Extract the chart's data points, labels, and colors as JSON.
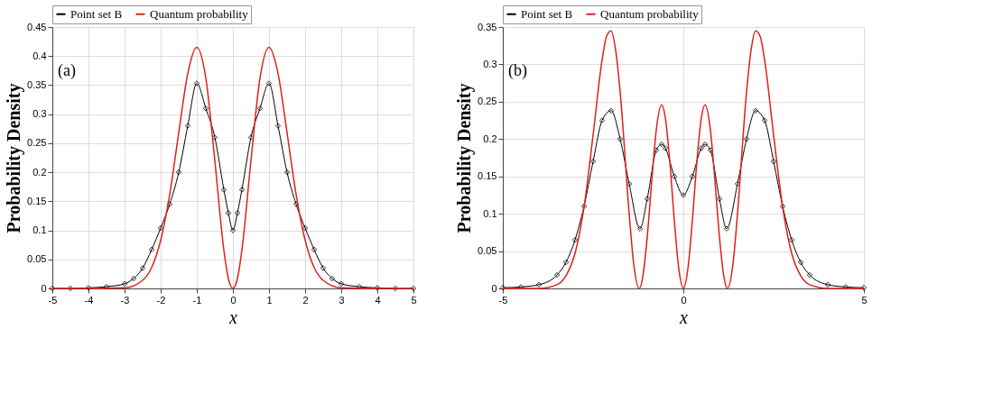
{
  "chart_data": [
    {
      "type": "line",
      "xlabel": "x",
      "ylabel": "Probability Density",
      "annotations": [
        "(a)"
      ],
      "xlim": [
        -5,
        5
      ],
      "ylim": [
        0,
        0.45
      ],
      "xticks": [
        -5,
        -4,
        -3,
        -2,
        -1,
        0,
        1,
        2,
        3,
        4,
        5
      ],
      "yticks": [
        0,
        0.05,
        0.1,
        0.15,
        0.2,
        0.25,
        0.3,
        0.35,
        0.4,
        0.45
      ],
      "grid": true,
      "legend": "top",
      "line_style": "solid",
      "series": [
        {
          "name": "Point set B",
          "color": "#000000",
          "marker": "diamond",
          "x": [
            -5,
            -4.5,
            -4,
            -3.5,
            -3,
            -2.75,
            -2.5,
            -2.25,
            -2,
            -1.75,
            -1.5,
            -1.25,
            -1,
            -0.75,
            -0.5,
            -0.25,
            -0.125,
            0,
            0.125,
            0.25,
            0.5,
            0.75,
            1,
            1.25,
            1.5,
            1.75,
            2,
            2.25,
            2.5,
            2.75,
            3,
            3.5,
            4,
            4.5,
            5
          ],
          "values": [
            0,
            0,
            0.001,
            0.003,
            0.008,
            0.017,
            0.035,
            0.067,
            0.104,
            0.145,
            0.2,
            0.28,
            0.353,
            0.31,
            0.26,
            0.17,
            0.13,
            0.1,
            0.13,
            0.17,
            0.26,
            0.31,
            0.353,
            0.28,
            0.2,
            0.145,
            0.104,
            0.067,
            0.035,
            0.017,
            0.008,
            0.003,
            0.001,
            0,
            0
          ]
        },
        {
          "name": "Quantum probability",
          "color": "#e0201b",
          "marker": "none",
          "x": [
            -5,
            -4,
            -3,
            -2.5,
            -2.25,
            -2,
            -1.75,
            -1.5,
            -1.25,
            -1,
            -0.75,
            -0.5,
            -0.25,
            -0.125,
            0,
            0.125,
            0.25,
            0.5,
            0.75,
            1,
            1.25,
            1.5,
            1.75,
            2,
            2.25,
            2.5,
            3,
            4,
            5
          ],
          "values": [
            0,
            0,
            0.001,
            0.014,
            0.036,
            0.083,
            0.162,
            0.268,
            0.37,
            0.415,
            0.362,
            0.22,
            0.066,
            0.017,
            0,
            0.017,
            0.066,
            0.22,
            0.362,
            0.415,
            0.37,
            0.268,
            0.162,
            0.083,
            0.036,
            0.014,
            0.001,
            0,
            0
          ]
        }
      ]
    },
    {
      "type": "line",
      "xlabel": "x",
      "ylabel": "Probability Density",
      "annotations": [
        "(b)"
      ],
      "xlim": [
        -5,
        5
      ],
      "ylim": [
        0,
        0.35
      ],
      "xticks": [
        -5,
        0,
        5
      ],
      "yticks": [
        0,
        0.05,
        0.1,
        0.15,
        0.2,
        0.25,
        0.3,
        0.35
      ],
      "grid": true,
      "legend": "top",
      "line_style": "solid",
      "series": [
        {
          "name": "Point set B",
          "color": "#000000",
          "marker": "diamond",
          "x": [
            -5,
            -4.5,
            -4,
            -3.5,
            -3.25,
            -3,
            -2.75,
            -2.5,
            -2.25,
            -2,
            -1.75,
            -1.5,
            -1.2,
            -1,
            -0.75,
            -0.6,
            -0.5,
            -0.25,
            0,
            0.25,
            0.5,
            0.6,
            0.75,
            1,
            1.2,
            1.5,
            1.75,
            2,
            2.25,
            2.5,
            2.75,
            3,
            3.25,
            3.5,
            4,
            4.5,
            5
          ],
          "values": [
            0.001,
            0.002,
            0.005,
            0.018,
            0.035,
            0.065,
            0.11,
            0.17,
            0.225,
            0.238,
            0.2,
            0.14,
            0.08,
            0.12,
            0.185,
            0.193,
            0.188,
            0.15,
            0.125,
            0.15,
            0.188,
            0.193,
            0.185,
            0.12,
            0.08,
            0.14,
            0.2,
            0.238,
            0.225,
            0.17,
            0.11,
            0.065,
            0.035,
            0.018,
            0.005,
            0.002,
            0.001
          ]
        },
        {
          "name": "Quantum probability",
          "color": "#e0201b",
          "marker": "none",
          "x": [
            -5,
            -4,
            -3.5,
            -3.25,
            -3,
            -2.75,
            -2.5,
            -2.25,
            -2.125,
            -2,
            -1.875,
            -1.75,
            -1.5,
            -1.375,
            -1.22,
            -1.125,
            -1,
            -0.875,
            -0.75,
            -0.6,
            -0.5,
            -0.375,
            -0.25,
            -0.125,
            0,
            0.125,
            0.25,
            0.375,
            0.5,
            0.6,
            0.75,
            0.875,
            1,
            1.125,
            1.22,
            1.375,
            1.5,
            1.75,
            1.875,
            2,
            2.125,
            2.25,
            2.5,
            2.75,
            3,
            3.25,
            3.5,
            4,
            5
          ],
          "values": [
            0,
            0,
            0.005,
            0.017,
            0.047,
            0.109,
            0.205,
            0.306,
            0.338,
            0.345,
            0.319,
            0.263,
            0.1,
            0.033,
            0,
            0.015,
            0.069,
            0.144,
            0.212,
            0.246,
            0.229,
            0.17,
            0.091,
            0.026,
            0,
            0.026,
            0.091,
            0.17,
            0.229,
            0.246,
            0.212,
            0.144,
            0.069,
            0.015,
            0,
            0.033,
            0.1,
            0.263,
            0.319,
            0.345,
            0.338,
            0.306,
            0.205,
            0.109,
            0.047,
            0.017,
            0.005,
            0,
            0
          ]
        }
      ]
    }
  ]
}
